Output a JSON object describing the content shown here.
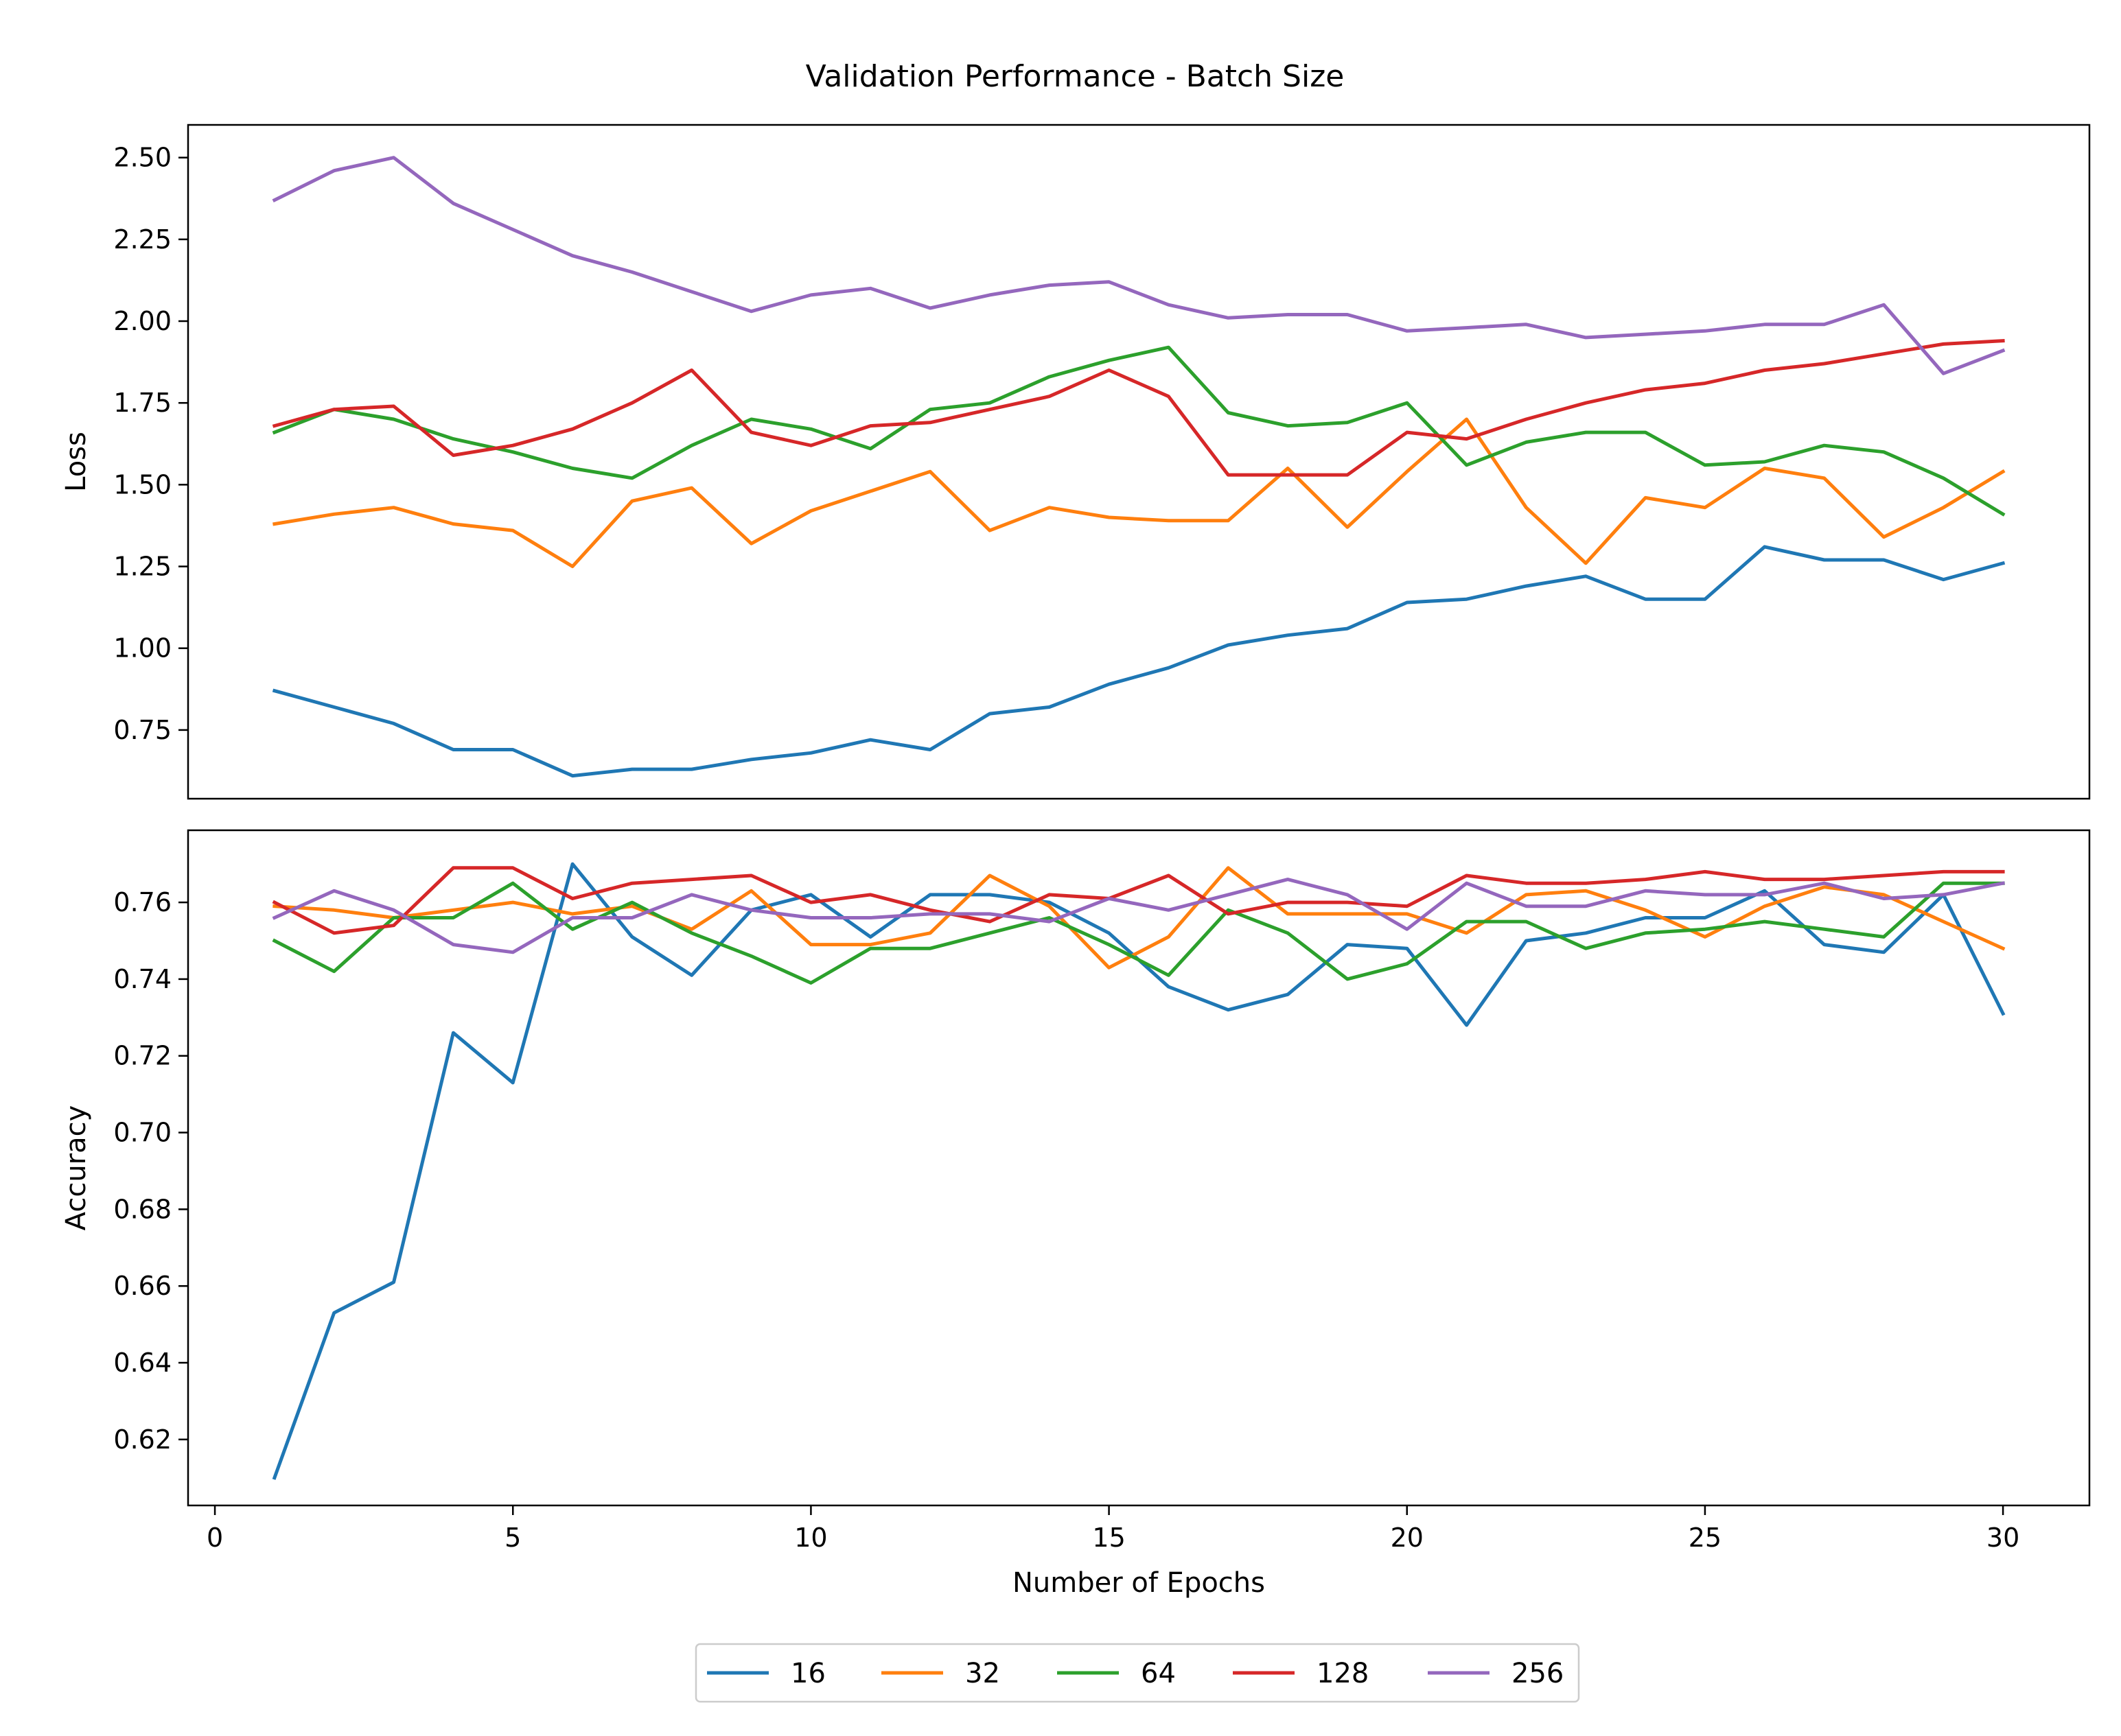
{
  "figure_title": "Validation Performance - Batch Size",
  "chart_data": [
    {
      "type": "line",
      "panel": "loss",
      "title": "",
      "xlabel": "",
      "ylabel": "Loss",
      "xlim": [
        -0.45,
        31.45
      ],
      "ylim": [
        0.54,
        2.6
      ],
      "yticks": [
        0.75,
        1.0,
        1.25,
        1.5,
        1.75,
        2.0,
        2.25,
        2.5
      ],
      "ytick_labels": [
        "0.75",
        "1.00",
        "1.25",
        "1.50",
        "1.75",
        "2.00",
        "2.25",
        "2.50"
      ],
      "grid": false,
      "x": [
        1,
        2,
        3,
        4,
        5,
        6,
        7,
        8,
        9,
        10,
        11,
        12,
        13,
        14,
        15,
        16,
        17,
        18,
        19,
        20,
        21,
        22,
        23,
        24,
        25,
        26,
        27,
        28,
        29,
        30
      ],
      "series": [
        {
          "name": "16",
          "color": "#1f77b4",
          "values": [
            0.87,
            0.82,
            0.77,
            0.69,
            0.69,
            0.61,
            0.63,
            0.63,
            0.66,
            0.68,
            0.72,
            0.69,
            0.8,
            0.82,
            0.89,
            0.94,
            1.01,
            1.04,
            1.06,
            1.14,
            1.15,
            1.19,
            1.22,
            1.15,
            1.15,
            1.31,
            1.27,
            1.27,
            1.21,
            1.26
          ]
        },
        {
          "name": "32",
          "color": "#ff7f0e",
          "values": [
            1.38,
            1.41,
            1.43,
            1.38,
            1.36,
            1.25,
            1.45,
            1.49,
            1.32,
            1.42,
            1.48,
            1.54,
            1.36,
            1.43,
            1.4,
            1.39,
            1.39,
            1.55,
            1.37,
            1.54,
            1.7,
            1.43,
            1.26,
            1.46,
            1.43,
            1.55,
            1.52,
            1.34,
            1.43,
            1.54
          ]
        },
        {
          "name": "64",
          "color": "#2ca02c",
          "values": [
            1.66,
            1.73,
            1.7,
            1.64,
            1.6,
            1.55,
            1.52,
            1.62,
            1.7,
            1.67,
            1.61,
            1.73,
            1.75,
            1.83,
            1.88,
            1.92,
            1.72,
            1.68,
            1.69,
            1.75,
            1.56,
            1.63,
            1.66,
            1.66,
            1.56,
            1.57,
            1.62,
            1.6,
            1.52,
            1.41
          ]
        },
        {
          "name": "128",
          "color": "#d62728",
          "values": [
            1.68,
            1.73,
            1.74,
            1.59,
            1.62,
            1.67,
            1.75,
            1.85,
            1.66,
            1.62,
            1.68,
            1.69,
            1.73,
            1.77,
            1.85,
            1.77,
            1.53,
            1.53,
            1.53,
            1.66,
            1.64,
            1.7,
            1.75,
            1.79,
            1.81,
            1.85,
            1.87,
            1.9,
            1.93,
            1.94
          ]
        },
        {
          "name": "256",
          "color": "#9467bd",
          "values": [
            2.37,
            2.46,
            2.5,
            2.36,
            2.28,
            2.2,
            2.15,
            2.09,
            2.03,
            2.08,
            2.1,
            2.04,
            2.08,
            2.11,
            2.12,
            2.05,
            2.01,
            2.02,
            2.02,
            1.97,
            1.98,
            1.99,
            1.95,
            1.96,
            1.97,
            1.99,
            1.99,
            2.05,
            1.84,
            1.91
          ]
        }
      ]
    },
    {
      "type": "line",
      "panel": "accuracy",
      "title": "",
      "xlabel": "Number of Epochs",
      "ylabel": "Accuracy",
      "xlim": [
        -0.45,
        31.45
      ],
      "ylim": [
        0.6028,
        0.7788
      ],
      "xticks": [
        0,
        5,
        10,
        15,
        20,
        25,
        30
      ],
      "xtick_labels": [
        "0",
        "5",
        "10",
        "15",
        "20",
        "25",
        "30"
      ],
      "yticks": [
        0.62,
        0.64,
        0.66,
        0.68,
        0.7,
        0.72,
        0.74,
        0.76
      ],
      "ytick_labels": [
        "0.62",
        "0.64",
        "0.66",
        "0.68",
        "0.70",
        "0.72",
        "0.74",
        "0.76"
      ],
      "grid": false,
      "x": [
        1,
        2,
        3,
        4,
        5,
        6,
        7,
        8,
        9,
        10,
        11,
        12,
        13,
        14,
        15,
        16,
        17,
        18,
        19,
        20,
        21,
        22,
        23,
        24,
        25,
        26,
        27,
        28,
        29,
        30
      ],
      "series": [
        {
          "name": "16",
          "color": "#1f77b4",
          "values": [
            0.61,
            0.653,
            0.661,
            0.726,
            0.713,
            0.77,
            0.751,
            0.741,
            0.758,
            0.762,
            0.751,
            0.762,
            0.762,
            0.76,
            0.752,
            0.738,
            0.732,
            0.736,
            0.749,
            0.748,
            0.728,
            0.75,
            0.752,
            0.756,
            0.756,
            0.763,
            0.749,
            0.747,
            0.762,
            0.731
          ]
        },
        {
          "name": "32",
          "color": "#ff7f0e",
          "values": [
            0.759,
            0.758,
            0.756,
            0.758,
            0.76,
            0.757,
            0.759,
            0.753,
            0.763,
            0.749,
            0.749,
            0.752,
            0.767,
            0.759,
            0.743,
            0.751,
            0.769,
            0.757,
            0.757,
            0.757,
            0.752,
            0.762,
            0.763,
            0.758,
            0.751,
            0.759,
            0.764,
            0.762,
            0.755,
            0.748
          ]
        },
        {
          "name": "64",
          "color": "#2ca02c",
          "values": [
            0.75,
            0.742,
            0.756,
            0.756,
            0.765,
            0.753,
            0.76,
            0.752,
            0.746,
            0.739,
            0.748,
            0.748,
            0.752,
            0.756,
            0.749,
            0.741,
            0.758,
            0.752,
            0.74,
            0.744,
            0.755,
            0.755,
            0.748,
            0.752,
            0.753,
            0.755,
            0.753,
            0.751,
            0.765,
            0.765
          ]
        },
        {
          "name": "128",
          "color": "#d62728",
          "values": [
            0.76,
            0.752,
            0.754,
            0.769,
            0.769,
            0.761,
            0.765,
            0.766,
            0.767,
            0.76,
            0.762,
            0.758,
            0.755,
            0.762,
            0.761,
            0.767,
            0.757,
            0.76,
            0.76,
            0.759,
            0.767,
            0.765,
            0.765,
            0.766,
            0.768,
            0.766,
            0.766,
            0.767,
            0.768,
            0.768
          ]
        },
        {
          "name": "256",
          "color": "#9467bd",
          "values": [
            0.756,
            0.763,
            0.758,
            0.749,
            0.747,
            0.756,
            0.756,
            0.762,
            0.758,
            0.756,
            0.756,
            0.757,
            0.757,
            0.755,
            0.761,
            0.758,
            0.762,
            0.766,
            0.762,
            0.753,
            0.765,
            0.759,
            0.759,
            0.763,
            0.762,
            0.762,
            0.765,
            0.761,
            0.762,
            0.765
          ]
        }
      ]
    }
  ],
  "legend": {
    "placement": "bottom-center",
    "entries": [
      {
        "label": "16",
        "color": "#1f77b4"
      },
      {
        "label": "32",
        "color": "#ff7f0e"
      },
      {
        "label": "64",
        "color": "#2ca02c"
      },
      {
        "label": "128",
        "color": "#d62728"
      },
      {
        "label": "256",
        "color": "#9467bd"
      }
    ]
  }
}
